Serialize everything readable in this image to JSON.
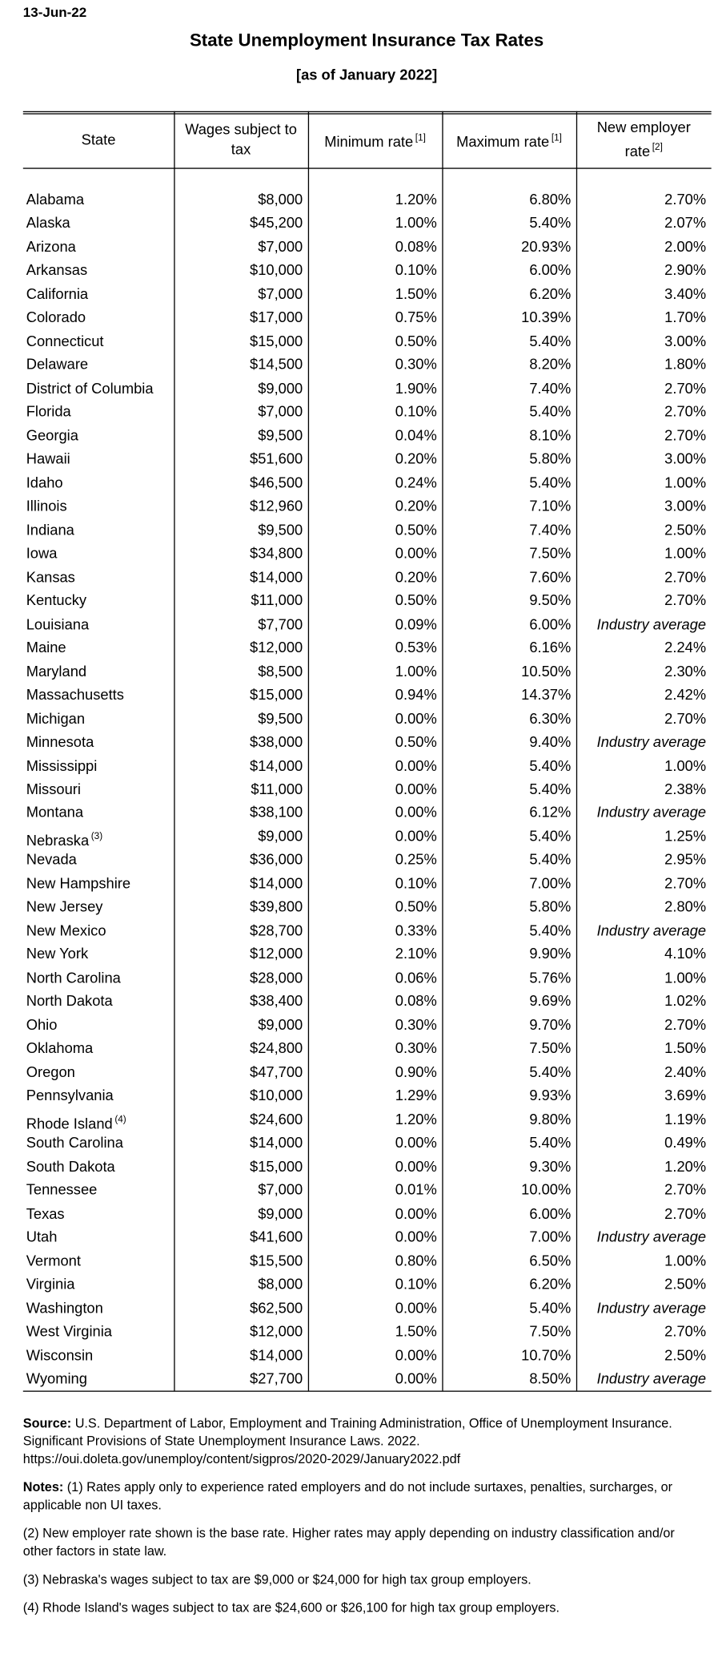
{
  "date": "13-Jun-22",
  "title": "State Unemployment Insurance Tax Rates",
  "subtitle": "[as of January 2022]",
  "table": {
    "headers": [
      {
        "text": "State"
      },
      {
        "text": "Wages subject to tax"
      },
      {
        "text": "Minimum rate",
        "note": "[1]"
      },
      {
        "text": "Maximum rate",
        "note": "[1]"
      },
      {
        "text": "New employer rate",
        "note": "[2]"
      }
    ],
    "rows": [
      {
        "state": "Alabama",
        "wages": "$8,000",
        "min": "1.20%",
        "max": "6.80%",
        "new": "2.70%"
      },
      {
        "state": "Alaska",
        "wages": "$45,200",
        "min": "1.00%",
        "max": "5.40%",
        "new": "2.07%"
      },
      {
        "state": "Arizona",
        "wages": "$7,000",
        "min": "0.08%",
        "max": "20.93%",
        "new": "2.00%"
      },
      {
        "state": "Arkansas",
        "wages": "$10,000",
        "min": "0.10%",
        "max": "6.00%",
        "new": "2.90%"
      },
      {
        "state": "California",
        "wages": "$7,000",
        "min": "1.50%",
        "max": "6.20%",
        "new": "3.40%"
      },
      {
        "state": "Colorado",
        "wages": "$17,000",
        "min": "0.75%",
        "max": "10.39%",
        "new": "1.70%"
      },
      {
        "state": "Connecticut",
        "wages": "$15,000",
        "min": "0.50%",
        "max": "5.40%",
        "new": "3.00%"
      },
      {
        "state": "Delaware",
        "wages": "$14,500",
        "min": "0.30%",
        "max": "8.20%",
        "new": "1.80%"
      },
      {
        "state": "District of Columbia",
        "wages": "$9,000",
        "min": "1.90%",
        "max": "7.40%",
        "new": "2.70%"
      },
      {
        "state": "Florida",
        "wages": "$7,000",
        "min": "0.10%",
        "max": "5.40%",
        "new": "2.70%"
      },
      {
        "state": "Georgia",
        "wages": "$9,500",
        "min": "0.04%",
        "max": "8.10%",
        "new": "2.70%"
      },
      {
        "state": "Hawaii",
        "wages": "$51,600",
        "min": "0.20%",
        "max": "5.80%",
        "new": "3.00%"
      },
      {
        "state": "Idaho",
        "wages": "$46,500",
        "min": "0.24%",
        "max": "5.40%",
        "new": "1.00%"
      },
      {
        "state": "Illinois",
        "wages": "$12,960",
        "min": "0.20%",
        "max": "7.10%",
        "new": "3.00%"
      },
      {
        "state": "Indiana",
        "wages": "$9,500",
        "min": "0.50%",
        "max": "7.40%",
        "new": "2.50%"
      },
      {
        "state": "Iowa",
        "wages": "$34,800",
        "min": "0.00%",
        "max": "7.50%",
        "new": "1.00%"
      },
      {
        "state": "Kansas",
        "wages": "$14,000",
        "min": "0.20%",
        "max": "7.60%",
        "new": "2.70%"
      },
      {
        "state": "Kentucky",
        "wages": "$11,000",
        "min": "0.50%",
        "max": "9.50%",
        "new": "2.70%"
      },
      {
        "state": "Louisiana",
        "wages": "$7,700",
        "min": "0.09%",
        "max": "6.00%",
        "new": "Industry average"
      },
      {
        "state": "Maine",
        "wages": "$12,000",
        "min": "0.53%",
        "max": "6.16%",
        "new": "2.24%"
      },
      {
        "state": "Maryland",
        "wages": "$8,500",
        "min": "1.00%",
        "max": "10.50%",
        "new": "2.30%"
      },
      {
        "state": "Massachusetts",
        "wages": "$15,000",
        "min": "0.94%",
        "max": "14.37%",
        "new": "2.42%"
      },
      {
        "state": "Michigan",
        "wages": "$9,500",
        "min": "0.00%",
        "max": "6.30%",
        "new": "2.70%"
      },
      {
        "state": "Minnesota",
        "wages": "$38,000",
        "min": "0.50%",
        "max": "9.40%",
        "new": "Industry average"
      },
      {
        "state": "Mississippi",
        "wages": "$14,000",
        "min": "0.00%",
        "max": "5.40%",
        "new": "1.00%"
      },
      {
        "state": "Missouri",
        "wages": "$11,000",
        "min": "0.00%",
        "max": "5.40%",
        "new": "2.38%"
      },
      {
        "state": "Montana",
        "wages": "$38,100",
        "min": "0.00%",
        "max": "6.12%",
        "new": "Industry average"
      },
      {
        "state": "Nebraska",
        "note": "(3)",
        "wages": "$9,000",
        "min": "0.00%",
        "max": "5.40%",
        "new": "1.25%"
      },
      {
        "state": "Nevada",
        "wages": "$36,000",
        "min": "0.25%",
        "max": "5.40%",
        "new": "2.95%"
      },
      {
        "state": "New Hampshire",
        "wages": "$14,000",
        "min": "0.10%",
        "max": "7.00%",
        "new": "2.70%"
      },
      {
        "state": "New Jersey",
        "wages": "$39,800",
        "min": "0.50%",
        "max": "5.80%",
        "new": "2.80%"
      },
      {
        "state": "New Mexico",
        "wages": "$28,700",
        "min": "0.33%",
        "max": "5.40%",
        "new": "Industry average"
      },
      {
        "state": "New York",
        "wages": "$12,000",
        "min": "2.10%",
        "max": "9.90%",
        "new": "4.10%"
      },
      {
        "state": "North Carolina",
        "wages": "$28,000",
        "min": "0.06%",
        "max": "5.76%",
        "new": "1.00%"
      },
      {
        "state": "North Dakota",
        "wages": "$38,400",
        "min": "0.08%",
        "max": "9.69%",
        "new": "1.02%"
      },
      {
        "state": "Ohio",
        "wages": "$9,000",
        "min": "0.30%",
        "max": "9.70%",
        "new": "2.70%"
      },
      {
        "state": "Oklahoma",
        "wages": "$24,800",
        "min": "0.30%",
        "max": "7.50%",
        "new": "1.50%"
      },
      {
        "state": "Oregon",
        "wages": "$47,700",
        "min": "0.90%",
        "max": "5.40%",
        "new": "2.40%"
      },
      {
        "state": "Pennsylvania",
        "wages": "$10,000",
        "min": "1.29%",
        "max": "9.93%",
        "new": "3.69%"
      },
      {
        "state": "Rhode Island",
        "note": "(4)",
        "wages": "$24,600",
        "min": "1.20%",
        "max": "9.80%",
        "new": "1.19%"
      },
      {
        "state": "South Carolina",
        "wages": "$14,000",
        "min": "0.00%",
        "max": "5.40%",
        "new": "0.49%"
      },
      {
        "state": "South Dakota",
        "wages": "$15,000",
        "min": "0.00%",
        "max": "9.30%",
        "new": "1.20%"
      },
      {
        "state": "Tennessee",
        "wages": "$7,000",
        "min": "0.01%",
        "max": "10.00%",
        "new": "2.70%"
      },
      {
        "state": "Texas",
        "wages": "$9,000",
        "min": "0.00%",
        "max": "6.00%",
        "new": "2.70%"
      },
      {
        "state": "Utah",
        "wages": "$41,600",
        "min": "0.00%",
        "max": "7.00%",
        "new": "Industry average"
      },
      {
        "state": "Vermont",
        "wages": "$15,500",
        "min": "0.80%",
        "max": "6.50%",
        "new": "1.00%"
      },
      {
        "state": "Virginia",
        "wages": "$8,000",
        "min": "0.10%",
        "max": "6.20%",
        "new": "2.50%"
      },
      {
        "state": "Washington",
        "wages": "$62,500",
        "min": "0.00%",
        "max": "5.40%",
        "new": "Industry average"
      },
      {
        "state": "West Virginia",
        "wages": "$12,000",
        "min": "1.50%",
        "max": "7.50%",
        "new": "2.70%"
      },
      {
        "state": "Wisconsin",
        "wages": "$14,000",
        "min": "0.00%",
        "max": "10.70%",
        "new": "2.50%"
      },
      {
        "state": "Wyoming",
        "wages": "$27,700",
        "min": "0.00%",
        "max": "8.50%",
        "new": "Industry average"
      }
    ]
  },
  "source": {
    "label": "Source:",
    "text": "U.S. Department of Labor, Employment and Training Administration, Office of Unemployment Insurance. Significant Provisions of State Unemployment Insurance Laws. 2022.",
    "url": "https://oui.doleta.gov/unemploy/content/sigpros/2020-2029/January2022.pdf"
  },
  "notes": {
    "label": "Notes:",
    "items": [
      "(1) Rates apply only to experience rated employers and do not include surtaxes, penalties, surcharges, or applicable non UI taxes.",
      "(2) New employer rate shown is the base rate. Higher rates may apply depending on industry classification and/or other factors in state law.",
      "(3) Nebraska's wages subject to tax are $9,000 or $24,000 for high tax group employers.",
      "(4) Rhode Island's wages subject to tax are $24,600 or $26,100 for high tax group employers."
    ]
  }
}
